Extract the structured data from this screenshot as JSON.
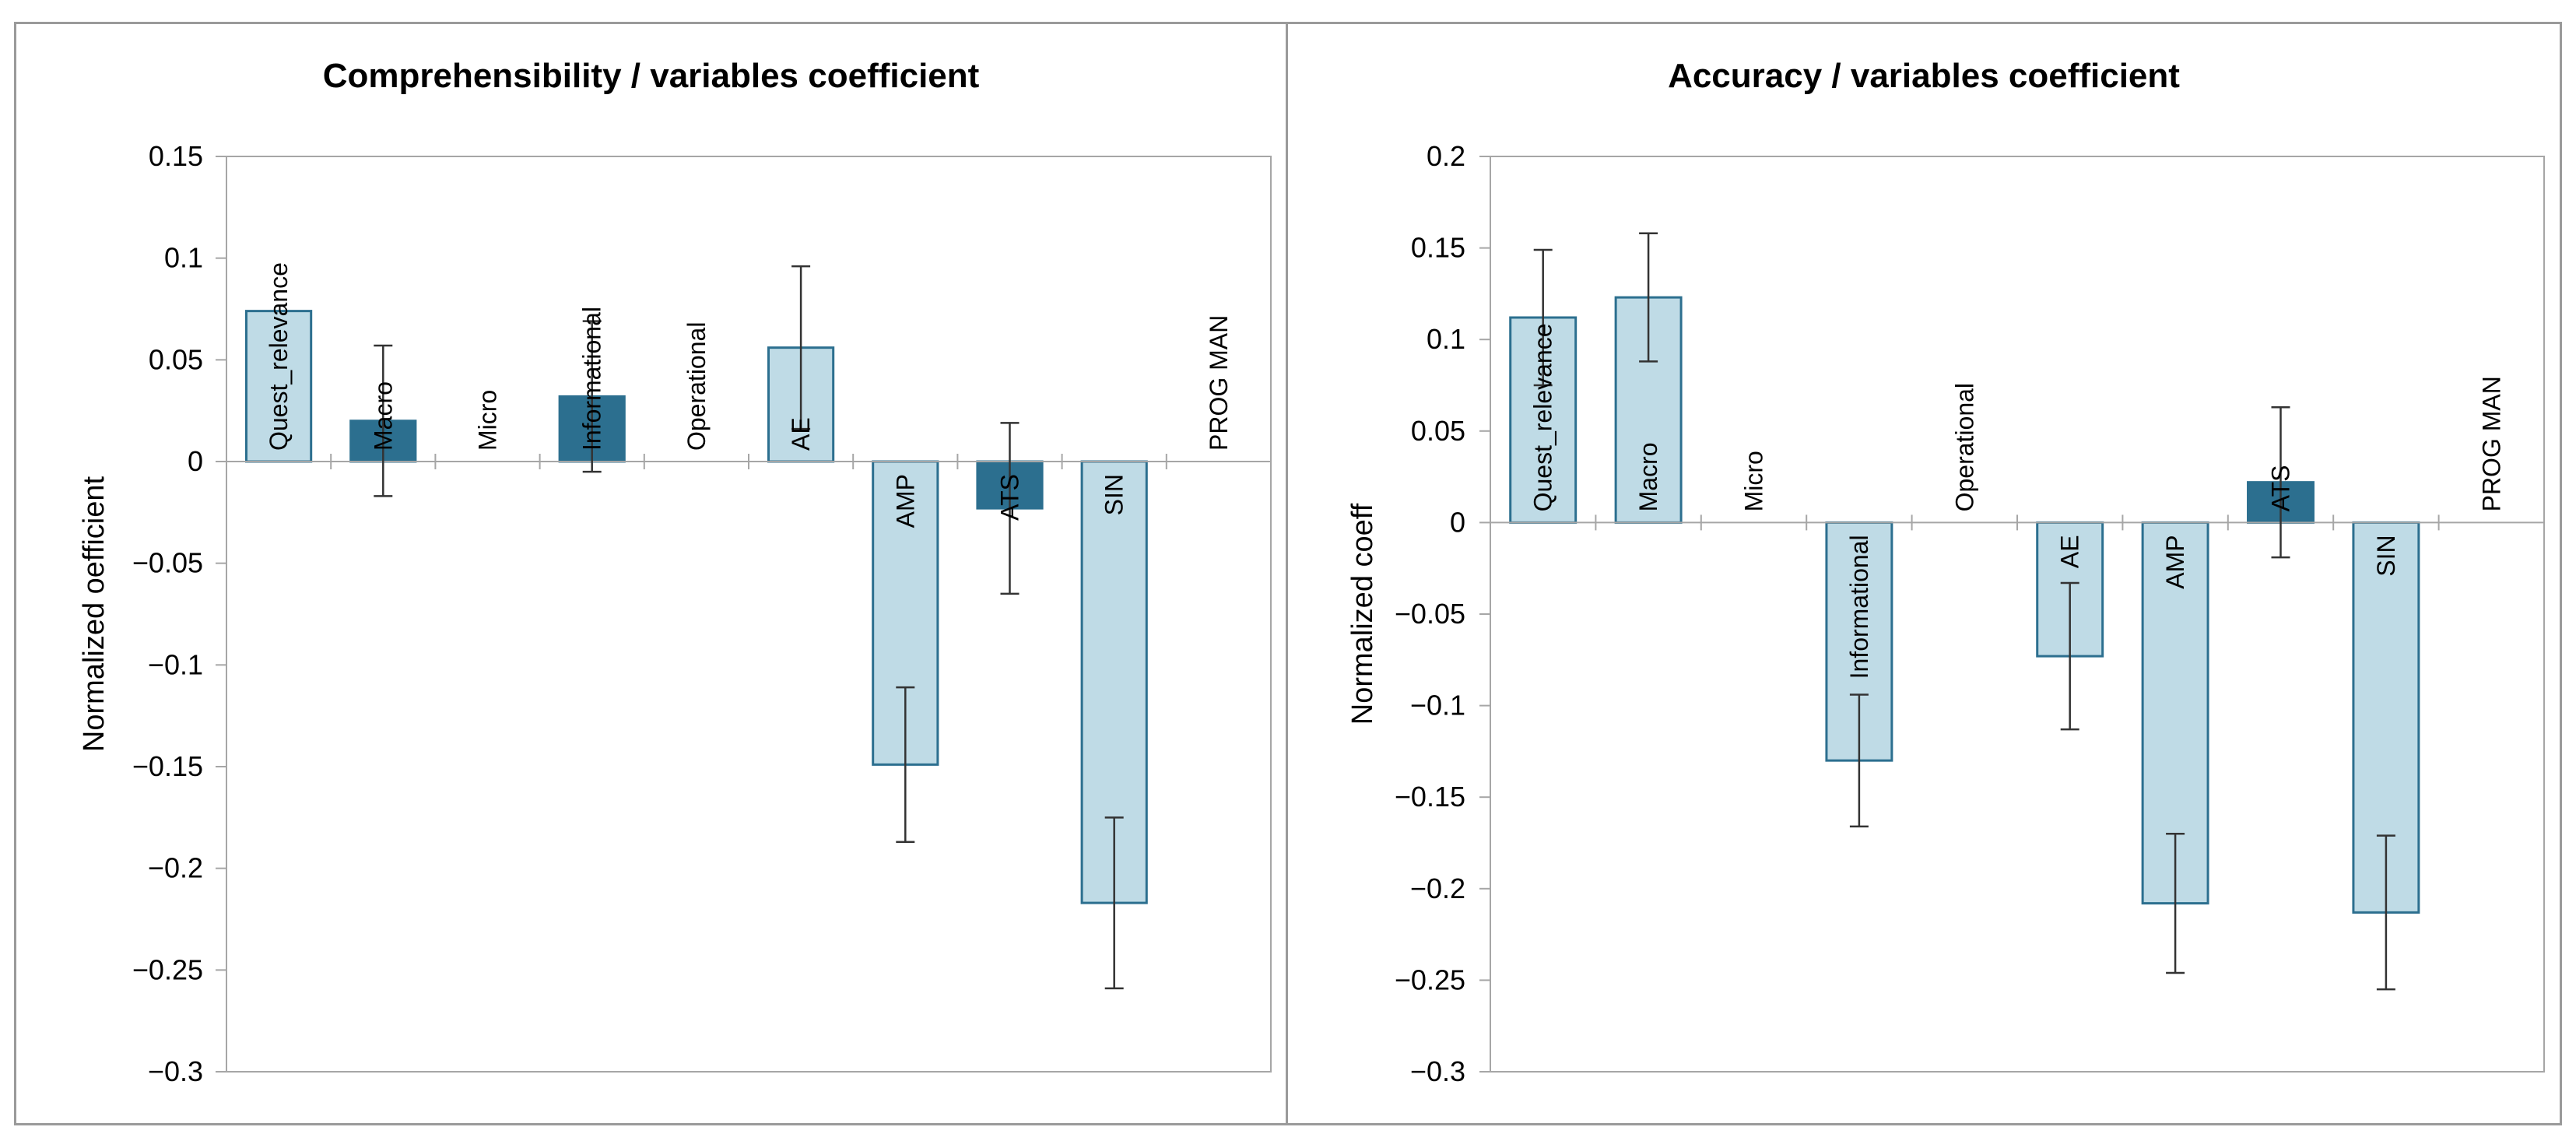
{
  "chart_data": [
    {
      "type": "bar",
      "title": "Comprehensibility / variables coefficient",
      "ylabel": "Normalized  oefficient",
      "xlabel": "",
      "ylim": [
        -0.3,
        0.15
      ],
      "yticks": [
        "0.15",
        "0.1",
        "0.05",
        "0",
        "−0.05",
        "−0.1",
        "−0.15",
        "−0.2",
        "−0.25",
        "−0.3"
      ],
      "grid": false,
      "categories": [
        "Quest_relevance",
        "Macro",
        "Micro",
        "Informational",
        "Operational",
        "AE",
        "AMP",
        "ATS",
        "SIN",
        "PROG MAN"
      ],
      "values": [
        0.074,
        0.02,
        0,
        0.032,
        0,
        0.056,
        -0.149,
        -0.023,
        -0.217,
        0
      ],
      "error": [
        null,
        0.037,
        null,
        0.037,
        null,
        0.04,
        0.038,
        0.042,
        0.042,
        null
      ],
      "colors": [
        "#bfdbe6",
        "#2c6f8f",
        null,
        "#2c6f8f",
        null,
        "#bfdbe6",
        "#bfdbe6",
        "#2c6f8f",
        "#bfdbe6",
        null
      ]
    },
    {
      "type": "bar",
      "title": "Accuracy / variables coefficient",
      "ylabel": "Normalized  coeff",
      "xlabel": "",
      "ylim": [
        -0.3,
        0.2
      ],
      "yticks": [
        "0.2",
        "0.15",
        "0.1",
        "0.05",
        "0",
        "−0.05",
        "−0.1",
        "−0.15",
        "−0.2",
        "−0.25",
        "−0.3"
      ],
      "grid": false,
      "categories": [
        "Quest_relevance",
        "Macro",
        "Micro",
        "Informational",
        "Operational",
        "AE",
        "AMP",
        "ATS",
        "SIN",
        "PROG MAN"
      ],
      "values": [
        0.112,
        0.123,
        0,
        -0.13,
        0,
        -0.073,
        -0.208,
        0.022,
        -0.213,
        0
      ],
      "error": [
        0.037,
        0.035,
        null,
        0.036,
        null,
        0.04,
        0.038,
        0.041,
        0.042,
        null
      ],
      "colors": [
        "#bfdbe6",
        "#bfdbe6",
        null,
        "#bfdbe6",
        null,
        "#bfdbe6",
        "#bfdbe6",
        "#2c6f8f",
        "#bfdbe6",
        null
      ]
    }
  ],
  "style": {
    "light_fill": "#bfdbe6",
    "dark_fill": "#2c6f8f",
    "bar_stroke": "#2c6f8f",
    "axis_color": "#a6a6a6",
    "error_color": "#333333"
  }
}
